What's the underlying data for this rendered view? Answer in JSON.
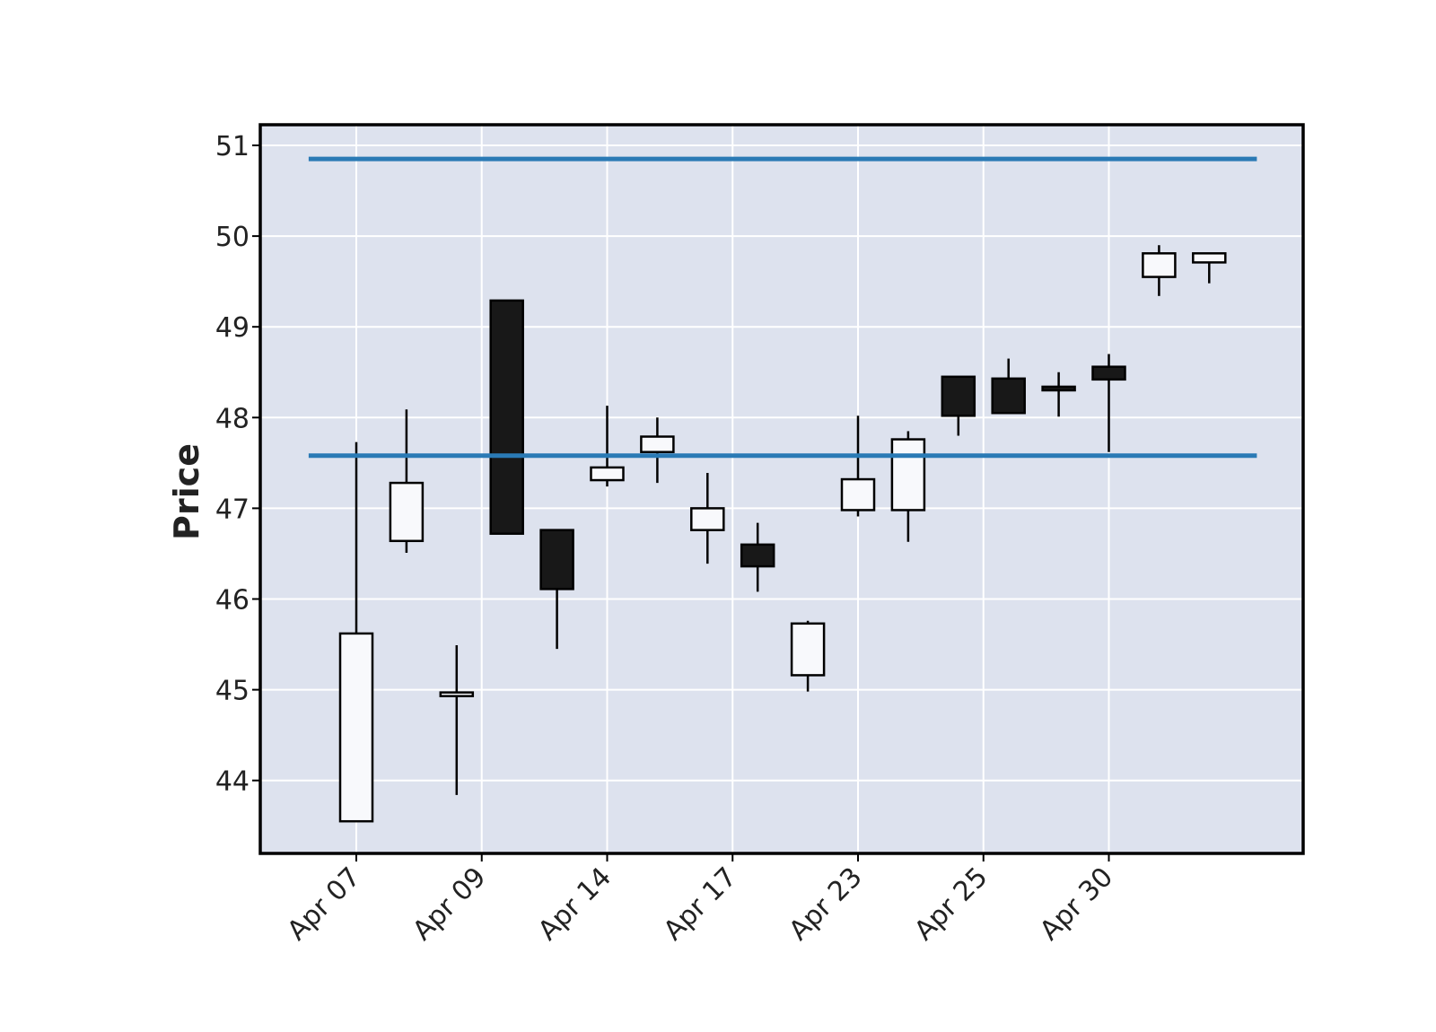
{
  "chart_data": {
    "type": "candlestick",
    "title": "",
    "xlabel": "",
    "ylabel": "Price",
    "ylim": [
      43.15,
      51.2
    ],
    "yticks": [
      44,
      45,
      46,
      47,
      48,
      49,
      50,
      51
    ],
    "grid": true,
    "x_tick_labels": [
      "Apr 07",
      "Apr 09",
      "Apr 14",
      "Apr 17",
      "Apr 23",
      "Apr 25",
      "Apr 30"
    ],
    "x_tick_label_indices": [
      0,
      2.5,
      5,
      7.5,
      10,
      12.5,
      15
    ],
    "candles": [
      {
        "open": 43.55,
        "high": 47.73,
        "low": 43.55,
        "close": 45.62
      },
      {
        "open": 46.64,
        "high": 48.09,
        "low": 46.51,
        "close": 47.28
      },
      {
        "open": 44.93,
        "high": 45.49,
        "low": 43.84,
        "close": 44.97
      },
      {
        "open": 49.29,
        "high": 49.29,
        "low": 46.72,
        "close": 46.72
      },
      {
        "open": 46.76,
        "high": 46.76,
        "low": 45.45,
        "close": 46.11
      },
      {
        "open": 47.31,
        "high": 48.13,
        "low": 47.24,
        "close": 47.45
      },
      {
        "open": 47.62,
        "high": 48.0,
        "low": 47.28,
        "close": 47.79
      },
      {
        "open": 46.76,
        "high": 47.39,
        "low": 46.39,
        "close": 47.0
      },
      {
        "open": 46.6,
        "high": 46.84,
        "low": 46.08,
        "close": 46.36
      },
      {
        "open": 45.16,
        "high": 45.76,
        "low": 44.98,
        "close": 45.73
      },
      {
        "open": 46.98,
        "high": 48.02,
        "low": 46.91,
        "close": 47.32
      },
      {
        "open": 46.98,
        "high": 47.85,
        "low": 46.63,
        "close": 47.76
      },
      {
        "open": 48.45,
        "high": 48.45,
        "low": 47.8,
        "close": 48.02
      },
      {
        "open": 48.43,
        "high": 48.65,
        "low": 48.05,
        "close": 48.05
      },
      {
        "open": 48.34,
        "high": 48.5,
        "low": 48.01,
        "close": 48.3
      },
      {
        "open": 48.56,
        "high": 48.7,
        "low": 47.62,
        "close": 48.42
      },
      {
        "open": 49.55,
        "high": 49.9,
        "low": 49.34,
        "close": 49.81
      },
      {
        "open": 49.71,
        "high": 49.81,
        "low": 49.48,
        "close": 49.81
      }
    ],
    "horizontal_lines": [
      50.85,
      47.58
    ],
    "colors": {
      "up": "#f8f9fc",
      "down": "#181818",
      "edge": "#000000",
      "hline": "#2a7ab5",
      "background": "#dde2ee",
      "grid": "#ffffff"
    }
  }
}
